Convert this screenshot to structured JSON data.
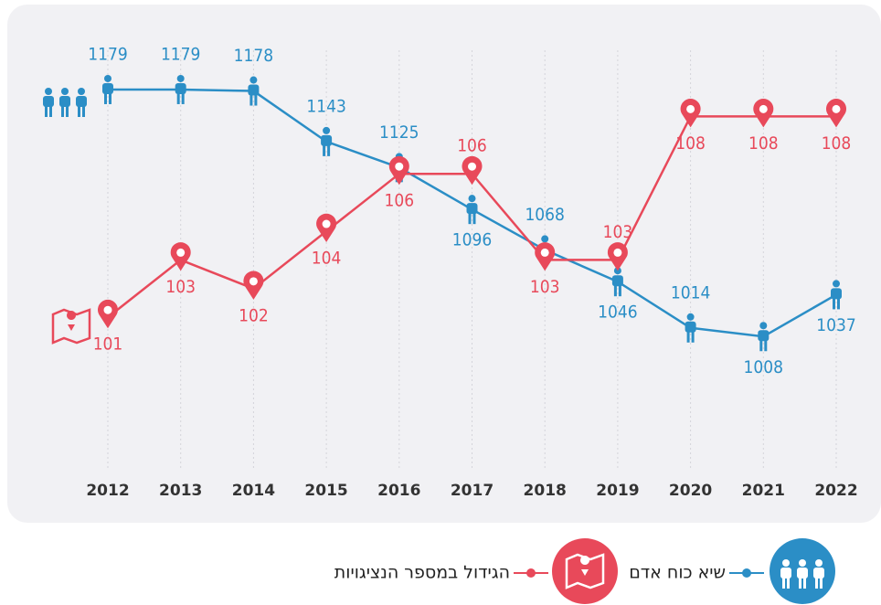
{
  "chart_data": {
    "type": "line",
    "categories": [
      "2012",
      "2013",
      "2014",
      "2015",
      "2016",
      "2017",
      "2018",
      "2019",
      "2020",
      "2021",
      "2022"
    ],
    "series": [
      {
        "name": "שיא כוח אדם",
        "color": "#2b8ec6",
        "values": [
          1179,
          1179,
          1178,
          1143,
          1125,
          1096,
          1068,
          1046,
          1014,
          1008,
          1037
        ]
      },
      {
        "name": "הגידול במספר הנציגויות",
        "color": "#e8495a",
        "axis": "y2",
        "values": [
          101,
          103,
          102,
          104,
          106,
          106,
          103,
          103,
          108,
          108,
          108
        ]
      }
    ],
    "ylim": [
      912,
      1222
    ],
    "y2lim": [
      95.5,
      111.1
    ],
    "grid": true
  }
}
